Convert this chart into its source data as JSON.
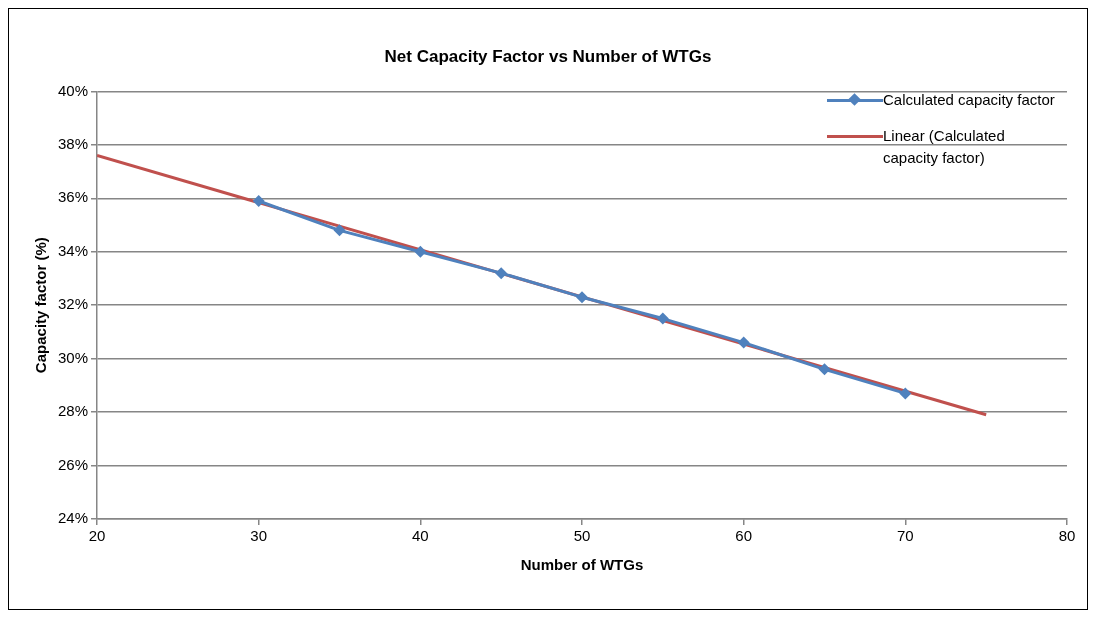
{
  "chart_data": {
    "type": "line",
    "title": "Net Capacity Factor vs Number of WTGs",
    "xlabel": "Number of WTGs",
    "ylabel": "Capacity factor (%)",
    "xlim": [
      20,
      80
    ],
    "xticks": [
      20,
      30,
      40,
      50,
      60,
      70,
      80
    ],
    "ylim": [
      24,
      40
    ],
    "yticks": [
      {
        "value": 24,
        "label": "24%"
      },
      {
        "value": 26,
        "label": "26%"
      },
      {
        "value": 28,
        "label": "28%"
      },
      {
        "value": 30,
        "label": "30%"
      },
      {
        "value": 32,
        "label": "32%"
      },
      {
        "value": 34,
        "label": "34%"
      },
      {
        "value": 36,
        "label": "36%"
      },
      {
        "value": 38,
        "label": "38%"
      },
      {
        "value": 40,
        "label": "40%"
      }
    ],
    "grid": "y",
    "legend": "top right",
    "series": [
      {
        "name": "Calculated capacity factor",
        "type": "line",
        "color": "#4f81bd",
        "marker": "diamond",
        "x": [
          30,
          35,
          40,
          45,
          50,
          55,
          60,
          65,
          70
        ],
        "values": [
          35.9,
          34.8,
          34.0,
          33.2,
          32.3,
          31.5,
          30.6,
          29.6,
          28.7
        ]
      },
      {
        "name": "Linear (Calculated capacity factor)",
        "type": "line",
        "color": "#c0504d",
        "marker": "none",
        "x": [
          20,
          75
        ],
        "values": [
          37.6,
          27.9
        ]
      }
    ]
  }
}
